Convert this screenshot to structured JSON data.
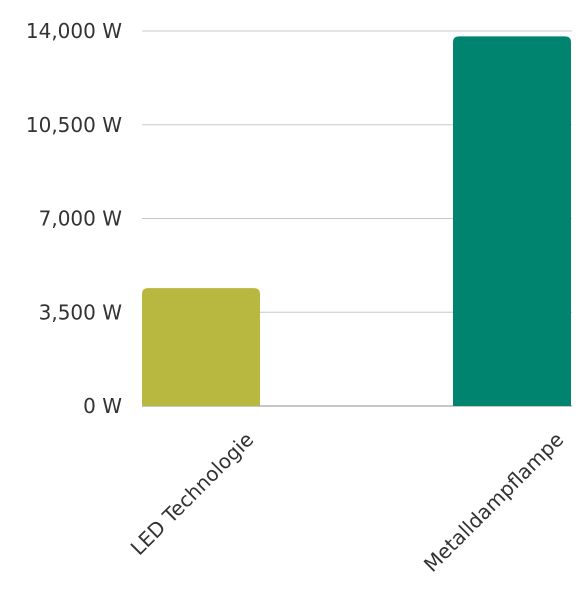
{
  "chart_data": {
    "type": "bar",
    "title": "",
    "xlabel": "",
    "ylabel": "",
    "categories": [
      "LED Technologie",
      "Metalldampflampe"
    ],
    "values": [
      4400,
      13800
    ],
    "colors": [
      "#b8b840",
      "#008470"
    ],
    "ylim": [
      0,
      14000
    ],
    "y_ticks": [
      0,
      3500,
      7000,
      10500,
      14000
    ],
    "y_tick_labels": [
      "0 W",
      "3,500 W",
      "7,000 W",
      "10,500 W",
      "14,000 W"
    ],
    "grid": true,
    "legend": "none"
  }
}
